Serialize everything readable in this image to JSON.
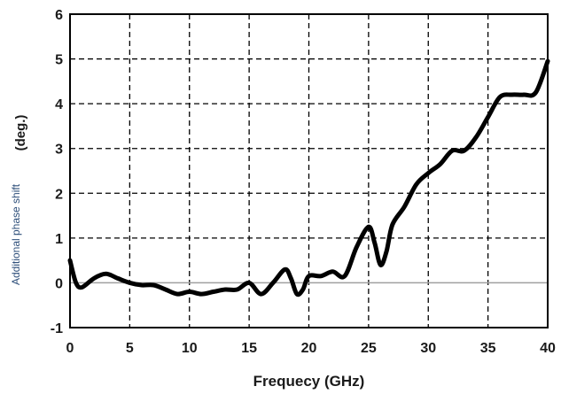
{
  "chart_data": {
    "type": "line",
    "xlabel": "Frequecy (GHz)",
    "ylabel_primary": "Additional phase shift",
    "ylabel_unit": "(deg.)",
    "xlim": [
      0,
      40
    ],
    "ylim": [
      -1,
      6
    ],
    "x_ticks": [
      "0",
      "5",
      "10",
      "15",
      "20",
      "25",
      "30",
      "35",
      "40"
    ],
    "y_ticks": [
      "-1",
      "0",
      "1",
      "2",
      "3",
      "4",
      "5",
      "6"
    ],
    "grid": true,
    "grid_style": "dashed",
    "zero_line": true,
    "line_color": "#000000",
    "zero_line_color": "#a0a0a0",
    "series": [
      {
        "x": [
          0,
          0.5,
          1,
          2,
          3,
          4,
          5,
          6,
          7,
          8,
          9,
          10,
          11,
          12,
          13,
          14,
          15,
          16,
          17,
          18,
          18.5,
          19,
          19.5,
          20,
          21,
          22,
          23,
          24,
          25,
          25.5,
          26,
          26.5,
          27,
          28,
          29,
          30,
          31,
          32,
          33,
          34,
          35,
          36,
          37,
          38,
          39,
          40
        ],
        "y": [
          0.5,
          0.0,
          -0.1,
          0.1,
          0.2,
          0.1,
          0.0,
          -0.05,
          -0.05,
          -0.15,
          -0.25,
          -0.2,
          -0.25,
          -0.2,
          -0.15,
          -0.15,
          0.0,
          -0.25,
          0.0,
          0.3,
          0.1,
          -0.25,
          -0.15,
          0.15,
          0.15,
          0.25,
          0.15,
          0.8,
          1.25,
          0.9,
          0.4,
          0.7,
          1.3,
          1.7,
          2.2,
          2.45,
          2.65,
          2.95,
          2.95,
          3.25,
          3.7,
          4.15,
          4.2,
          4.2,
          4.25,
          4.95
        ]
      }
    ]
  }
}
